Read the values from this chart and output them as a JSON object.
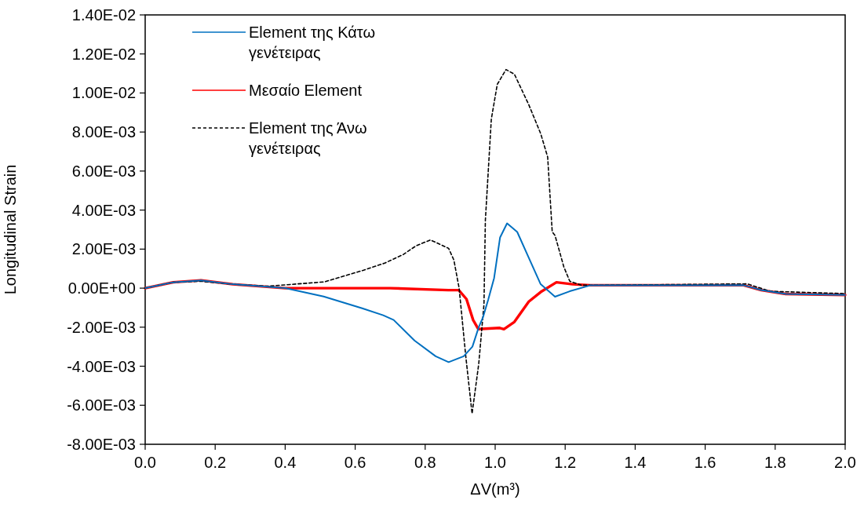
{
  "chart_data": {
    "type": "line",
    "xlabel": "ΔV(m³)",
    "ylabel": "Longitudinal Strain",
    "xlim": [
      0,
      2
    ],
    "ylim": [
      -0.008,
      0.014
    ],
    "xticks": [
      {
        "value": 0,
        "label": "0.0"
      },
      0.2,
      0.4,
      0.6,
      0.8,
      {
        "value": 1,
        "label": "1.0"
      },
      1.2,
      1.4,
      1.6,
      1.8,
      {
        "value": 2,
        "label": "2.0"
      }
    ],
    "yticks": [
      {
        "value": -0.008,
        "label": "-8.00E-03"
      },
      {
        "value": -0.006,
        "label": "-6.00E-03"
      },
      {
        "value": -0.004,
        "label": "-4.00E-03"
      },
      {
        "value": -0.002,
        "label": "-2.00E-03"
      },
      {
        "value": 0,
        "label": "0.00E+00"
      },
      {
        "value": 0.002,
        "label": "2.00E-03"
      },
      {
        "value": 0.004,
        "label": "4.00E-03"
      },
      {
        "value": 0.006,
        "label": "6.00E-03"
      },
      {
        "value": 0.008,
        "label": "8.00E-03"
      },
      {
        "value": 0.01,
        "label": "1.00E-02"
      },
      {
        "value": 0.012,
        "label": "1.20E-02"
      },
      {
        "value": 0.014,
        "label": "1.40E-02"
      }
    ],
    "grid": false,
    "legend": "top left",
    "marker": "none",
    "series": [
      {
        "name": "Element της Κάτω γενέτειρας",
        "color": "#0070c0",
        "line_style": "solid",
        "x": [
          0,
          0.08,
          0.16,
          0.25,
          0.4,
          0.51,
          0.62,
          0.68,
          0.71,
          0.77,
          0.83,
          0.867,
          0.91,
          0.935,
          0.953,
          0.965,
          0.98,
          0.997,
          1.014,
          1.034,
          1.063,
          1.096,
          1.13,
          1.171,
          1.213,
          1.271,
          1.5,
          1.71,
          1.76,
          1.83,
          2.0
        ],
        "values": [
          0,
          0.0003,
          0.0004,
          0.0002,
          0,
          -0.00043,
          -0.00103,
          -0.00139,
          -0.00163,
          -0.00269,
          -0.00349,
          -0.00379,
          -0.00349,
          -0.003,
          -0.002,
          -0.0015,
          -0.0006,
          0.00052,
          0.0026,
          0.00332,
          0.00288,
          0.00156,
          0.0002,
          -0.00044,
          -0.00016,
          0.00014,
          0.00014,
          0.00015,
          -0.0001,
          -0.0003,
          -0.00035
        ]
      },
      {
        "name": "Μεσαίο Element",
        "color": "#ff0000",
        "line_style": "solid",
        "x": [
          0,
          0.08,
          0.16,
          0.25,
          0.4,
          0.7,
          0.866,
          0.896,
          0.918,
          0.937,
          0.952,
          1.013,
          1.025,
          1.055,
          1.096,
          1.13,
          1.175,
          1.221,
          1.271,
          1.5,
          1.71,
          1.76,
          1.83,
          2.0
        ],
        "values": [
          0,
          0.0003,
          0.0004,
          0.0002,
          0,
          0,
          -0.0001,
          -0.0001,
          -0.00056,
          -0.00163,
          -0.0021,
          -0.00204,
          -0.0021,
          -0.00173,
          -0.00069,
          -0.0002,
          0.0003,
          0.0002,
          0.00015,
          0.00015,
          0.00015,
          -0.0001,
          -0.0003,
          -0.00035
        ]
      },
      {
        "name": "Element της Άνω γενέτειρας",
        "color": "#000000",
        "line_style": "dashed",
        "x": [
          0,
          0.08,
          0.16,
          0.25,
          0.35,
          0.512,
          0.624,
          0.684,
          0.737,
          0.774,
          0.815,
          0.867,
          0.882,
          0.897,
          0.916,
          0.934,
          0.953,
          0.968,
          0.972,
          0.989,
          1.006,
          1.031,
          1.055,
          1.096,
          1.13,
          1.15,
          1.163,
          1.171,
          1.196,
          1.213,
          1.246,
          1.5,
          1.72,
          1.786,
          2.0
        ],
        "values": [
          0,
          0.0003,
          0.00035,
          0.0002,
          0.0001,
          0.00032,
          0.00092,
          0.00128,
          0.00172,
          0.00217,
          0.00247,
          0.00204,
          0.00144,
          0,
          -0.00349,
          -0.00643,
          -0.00389,
          -0.00083,
          0.00348,
          0.00866,
          0.01044,
          0.0112,
          0.01096,
          0.0094,
          0.00792,
          0.00672,
          0.00288,
          0.0027,
          0.0011,
          0.00036,
          0.00015,
          0.00018,
          0.00022,
          -0.00016,
          -0.00028
        ]
      }
    ]
  }
}
